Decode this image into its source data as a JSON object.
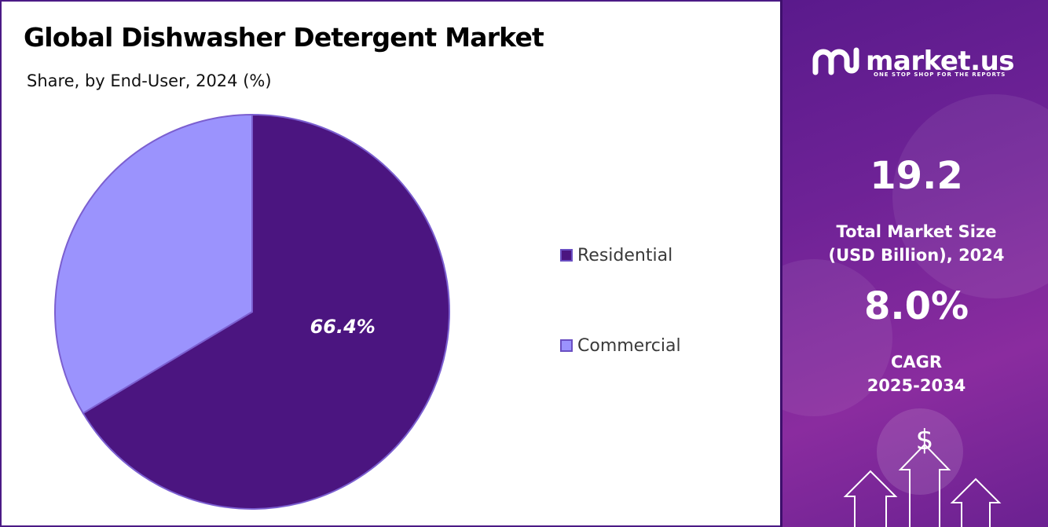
{
  "header": {
    "title": "Global Dishwasher Detergent Market",
    "subtitle": "Share, by End-User, 2024 (%)"
  },
  "chart_data": {
    "type": "pie",
    "title": "Global Dishwasher Detergent Market",
    "subtitle": "Share, by End-User, 2024 (%)",
    "categories": [
      "Residential",
      "Commercial"
    ],
    "values": [
      66.4,
      33.6
    ],
    "data_labels": [
      "66.4%",
      ""
    ],
    "colors": [
      "#4b1580",
      "#9b93fd"
    ],
    "legend_position": "right"
  },
  "legend": {
    "items": [
      {
        "label": "Residential",
        "color": "#4b1580"
      },
      {
        "label": "Commercial",
        "color": "#9b93fd"
      }
    ]
  },
  "sidebar": {
    "brand": "market.us",
    "tagline": "ONE STOP SHOP FOR THE REPORTS",
    "market_size_value": "19.2",
    "market_size_label_1": "Total Market Size",
    "market_size_label_2": "(USD Billion), 2024",
    "cagr_value": "8.0%",
    "cagr_label_1": "CAGR",
    "cagr_label_2": "2025-2034",
    "currency_symbol": "$"
  }
}
